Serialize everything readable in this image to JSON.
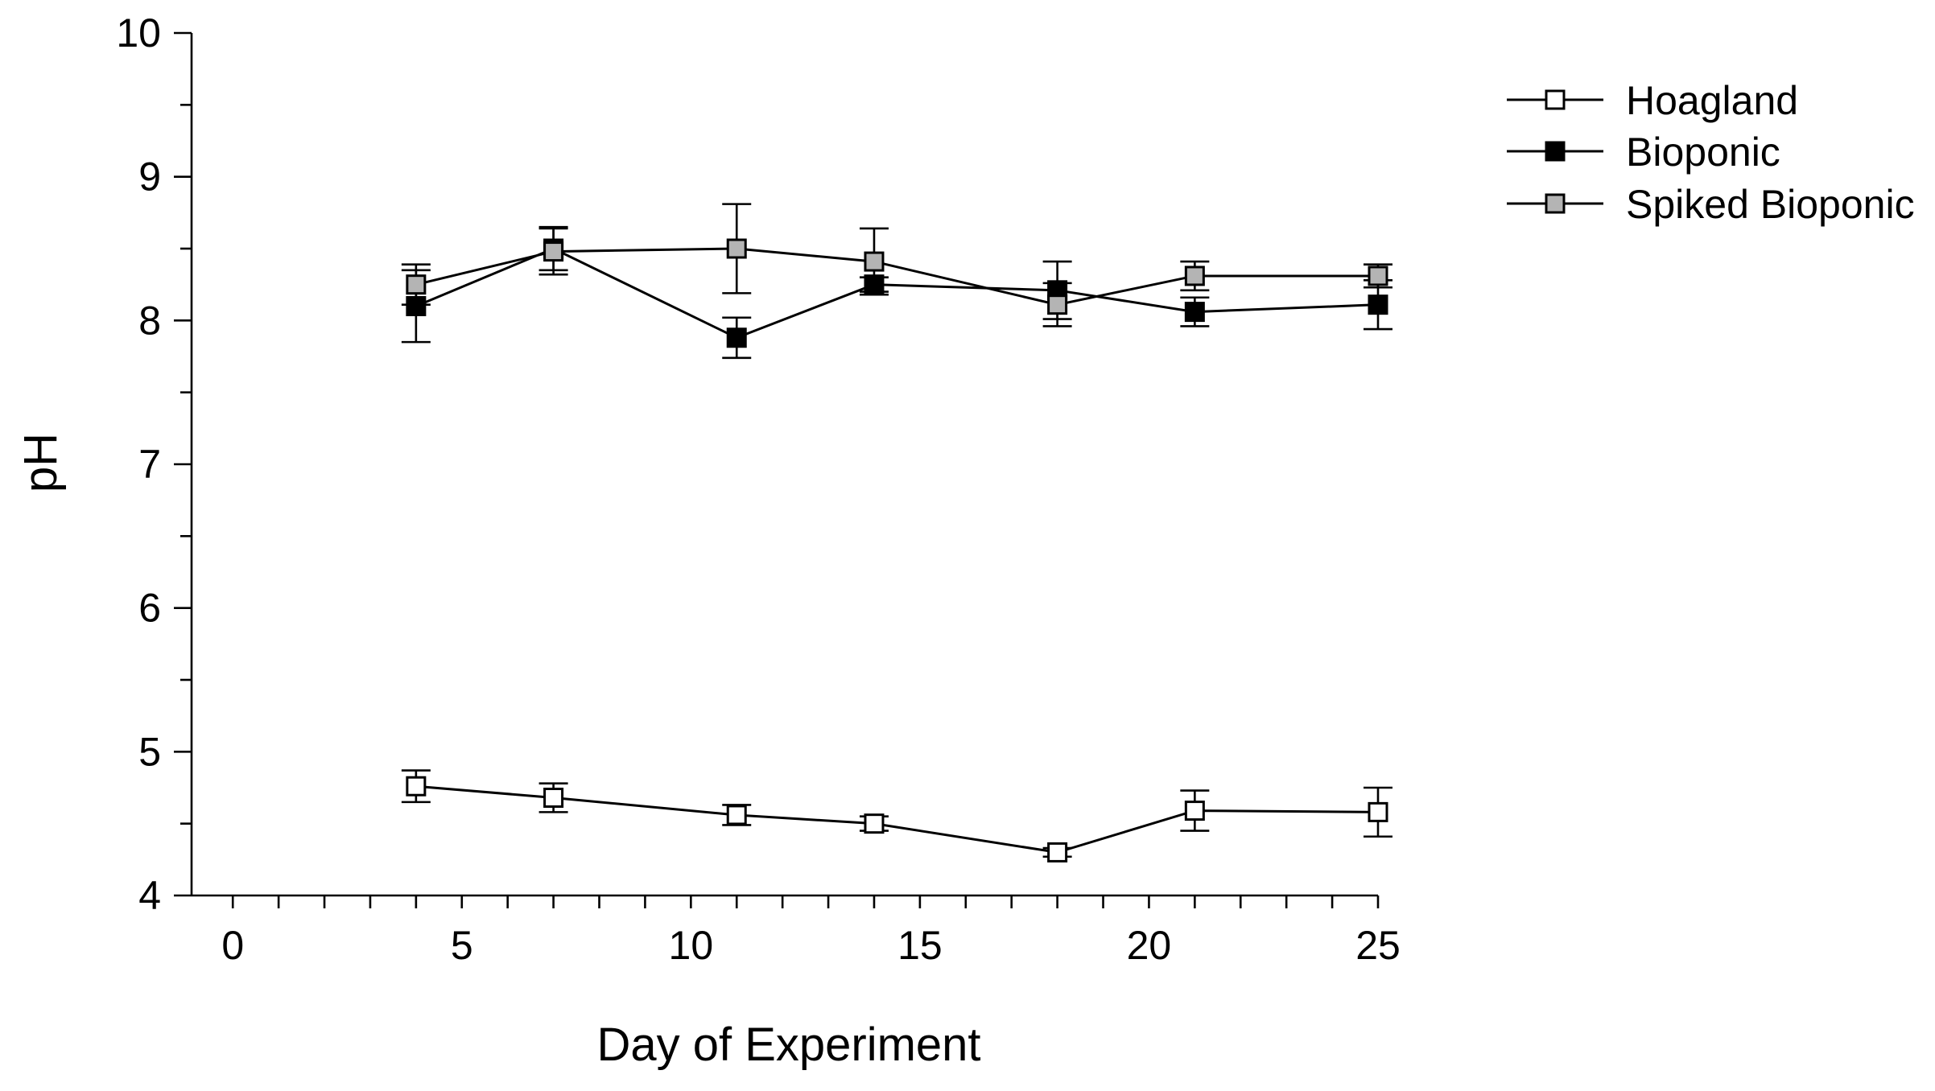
{
  "chart_data": {
    "type": "line",
    "title": "",
    "xlabel": "Day of Experiment",
    "ylabel": "pH",
    "xlim": [
      -0.9,
      25
    ],
    "ylim": [
      4,
      10
    ],
    "xticks": [
      0,
      5,
      10,
      15,
      20,
      25
    ],
    "xtick_labels": [
      "0",
      "5",
      "10",
      "15",
      "20",
      "25"
    ],
    "x_minor_step": 1,
    "yticks": [
      4,
      5,
      6,
      7,
      8,
      9,
      10
    ],
    "ytick_labels": [
      "4",
      "5",
      "6",
      "7",
      "8",
      "9",
      "10"
    ],
    "y_minor_step": 0.5,
    "grid": false,
    "legend_position": "top-right",
    "x": [
      4,
      7,
      11,
      14,
      18,
      21,
      25
    ],
    "series": [
      {
        "name": "Hoagland",
        "fill": "#ffffff",
        "values": [
          4.76,
          4.68,
          4.56,
          4.5,
          4.3,
          4.59,
          4.58
        ],
        "errors": [
          0.11,
          0.1,
          0.07,
          0.05,
          0.03,
          0.14,
          0.17
        ]
      },
      {
        "name": "Bioponic",
        "fill": "#000000",
        "values": [
          8.1,
          8.5,
          7.88,
          8.25,
          8.21,
          8.06,
          8.11
        ],
        "errors": [
          0.25,
          0.15,
          0.14,
          0.05,
          0.2,
          0.1,
          0.17
        ]
      },
      {
        "name": "Spiked Bioponic",
        "fill": "#b4b4b4",
        "values": [
          8.25,
          8.48,
          8.5,
          8.41,
          8.11,
          8.31,
          8.31
        ],
        "errors": [
          0.14,
          0.16,
          0.31,
          0.23,
          0.15,
          0.1,
          0.08
        ]
      }
    ]
  }
}
